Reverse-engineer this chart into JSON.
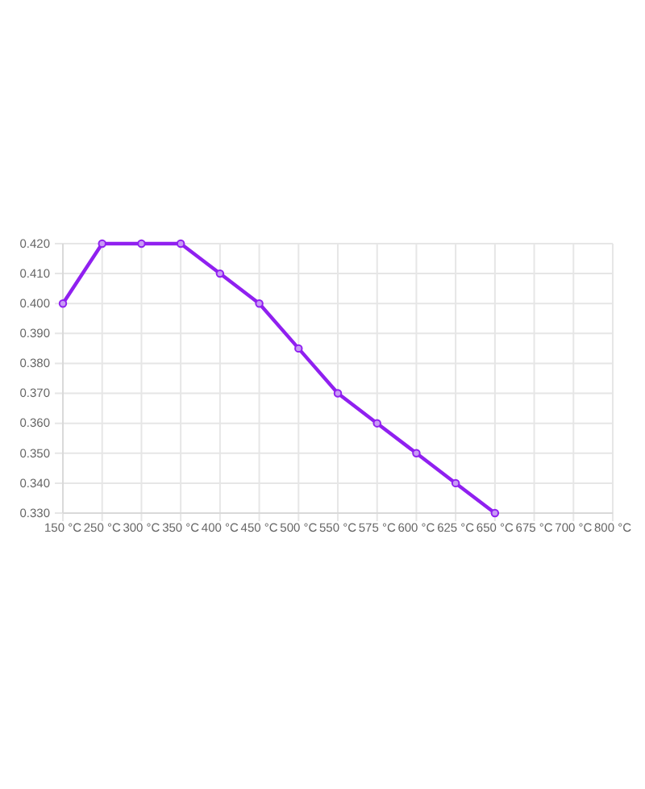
{
  "chart_data": {
    "type": "line",
    "categories": [
      "150 °C",
      "250 °C",
      "300 °C",
      "350 °C",
      "400 °C",
      "450 °C",
      "500 °C",
      "550 °C",
      "575 °C",
      "600 °C",
      "625 °C",
      "650 °C",
      "675 °C",
      "700 °C",
      "800 °C"
    ],
    "values": [
      0.4,
      0.42,
      0.42,
      0.42,
      0.41,
      0.4,
      0.385,
      0.37,
      0.36,
      0.35,
      0.34,
      0.33,
      null,
      null,
      null
    ],
    "color": "#9020f0",
    "ylim": [
      0.33,
      0.42
    ],
    "yticks": [
      {
        "value": 0.33,
        "label": "0.330"
      },
      {
        "value": 0.34,
        "label": "0.340"
      },
      {
        "value": 0.35,
        "label": "0.350"
      },
      {
        "value": 0.36,
        "label": "0.360"
      },
      {
        "value": 0.37,
        "label": "0.370"
      },
      {
        "value": 0.38,
        "label": "0.380"
      },
      {
        "value": 0.39,
        "label": "0.390"
      },
      {
        "value": 0.4,
        "label": "0.400"
      },
      {
        "value": 0.41,
        "label": "0.410"
      },
      {
        "value": 0.42,
        "label": "0.420"
      }
    ],
    "grid": true,
    "marker": "circle",
    "line_style": "solid"
  }
}
